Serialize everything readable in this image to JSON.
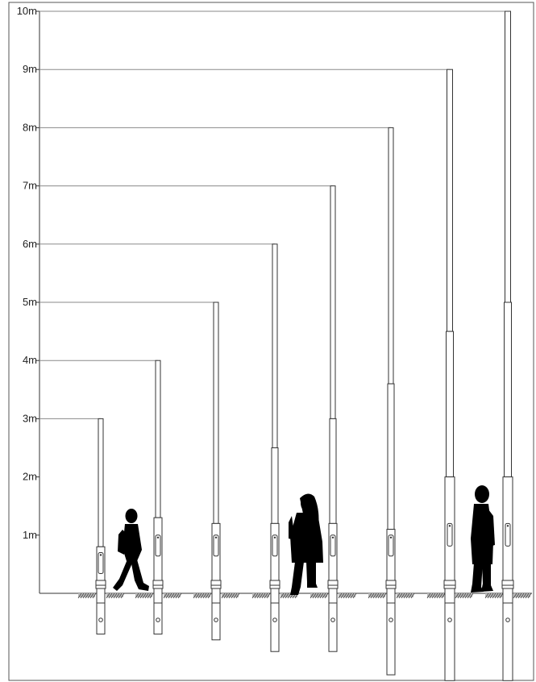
{
  "y_axis": {
    "unit": "m",
    "ticks": [
      "1m",
      "2m",
      "3m",
      "4m",
      "5m",
      "6m",
      "7m",
      "8m",
      "9m",
      "10m"
    ]
  },
  "poles": [
    {
      "height_m": 3,
      "joint_m": null,
      "door": "lower",
      "base_depth_m": 0.7
    },
    {
      "height_m": 4,
      "joint_m": null,
      "door": "upper",
      "base_depth_m": 0.7
    },
    {
      "height_m": 5,
      "joint_m": null,
      "door": "upper",
      "base_depth_m": 0.8
    },
    {
      "height_m": 6,
      "joint_m": 2.5,
      "door": "upper",
      "base_depth_m": 1.0
    },
    {
      "height_m": 7,
      "joint_m": 3.0,
      "door": "upper",
      "base_depth_m": 1.0
    },
    {
      "height_m": 8,
      "joint_m": 3.6,
      "door": "upper",
      "base_depth_m": 1.4
    },
    {
      "height_m": 9,
      "joint_m": 4.5,
      "door": "upper",
      "base_depth_m": 1.5
    },
    {
      "height_m": 10,
      "joint_m": 5.0,
      "door": "upper",
      "base_depth_m": 1.5
    }
  ],
  "people": [
    {
      "figure": "child-walking",
      "near_pole": 1
    },
    {
      "figure": "adult-side",
      "near_pole": 4
    },
    {
      "figure": "adult-standing",
      "near_pole": 7
    }
  ],
  "colors": {
    "line": "#333333",
    "ground_hatch": "#444444",
    "silhouette": "#000000"
  }
}
